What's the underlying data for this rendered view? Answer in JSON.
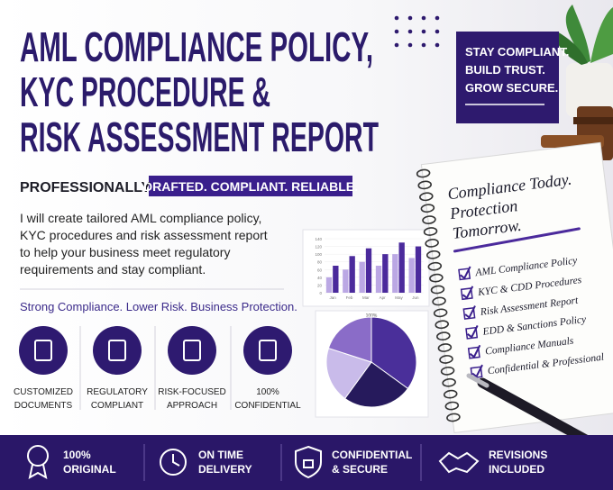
{
  "header": {
    "title_lines": [
      "AML COMPLIANCE POLICY,",
      "KYC PROCEDURE &",
      "RISK ASSESSMENT REPORT"
    ],
    "tagline_prefix": "PROFESSIONALLY",
    "tagline_highlight": "DRAFTED. COMPLIANT. RELIABLE."
  },
  "description_lines": [
    "I will create tailored AML compliance policy,",
    "KYC procedures and risk assessment report",
    "to help your business meet regulatory",
    "requirements and stay compliant."
  ],
  "slogan": "Strong Compliance. Lower Risk. Business Protection.",
  "features": [
    {
      "label_lines": [
        "CUSTOMIZED",
        "DOCUMENTS"
      ]
    },
    {
      "label_lines": [
        "REGULATORY",
        "COMPLIANT"
      ]
    },
    {
      "label_lines": [
        "RISK-FOCUSED",
        "APPROACH"
      ]
    },
    {
      "label_lines": [
        "100%",
        "CONFIDENTIAL"
      ]
    }
  ],
  "badge": {
    "lines": [
      "STAY COMPLIANT.",
      "BUILD TRUST.",
      "GROW SECURE."
    ]
  },
  "notebook": {
    "heading_lines": [
      "Compliance Today.",
      "Protection",
      "Tomorrow."
    ],
    "checklist": [
      "AML Compliance Policy",
      "KYC & CDD Procedures",
      "Risk Assessment Report",
      "EDD & Sanctions Policy",
      "Compliance Manuals",
      "Confidential & Professional"
    ]
  },
  "footer": {
    "items": [
      {
        "lines": [
          "100%",
          "ORIGINAL"
        ]
      },
      {
        "lines": [
          "ON TIME",
          "DELIVERY"
        ]
      },
      {
        "lines": [
          "CONFIDENTIAL",
          "& SECURE"
        ]
      },
      {
        "lines": [
          "REVISIONS",
          "INCLUDED"
        ]
      }
    ]
  },
  "chart_data": [
    {
      "type": "bar",
      "categories": [
        "Jan",
        "Feb",
        "Mar",
        "Apr",
        "May",
        "Jun"
      ],
      "series": [
        {
          "color": "#bba8e4",
          "values": [
            40,
            60,
            80,
            70,
            100,
            90
          ]
        },
        {
          "color": "#4b2a9c",
          "values": [
            70,
            95,
            115,
            100,
            130,
            120
          ]
        }
      ],
      "ylim": [
        0,
        140
      ],
      "yticks": [
        0,
        20,
        40,
        60,
        80,
        100,
        120,
        140
      ]
    },
    {
      "type": "pie",
      "title": "100%",
      "values": [
        35,
        25,
        20,
        20
      ],
      "colors": [
        "#4a2f9a",
        "#261a5c",
        "#c9bbea",
        "#8a6cc8"
      ]
    }
  ]
}
